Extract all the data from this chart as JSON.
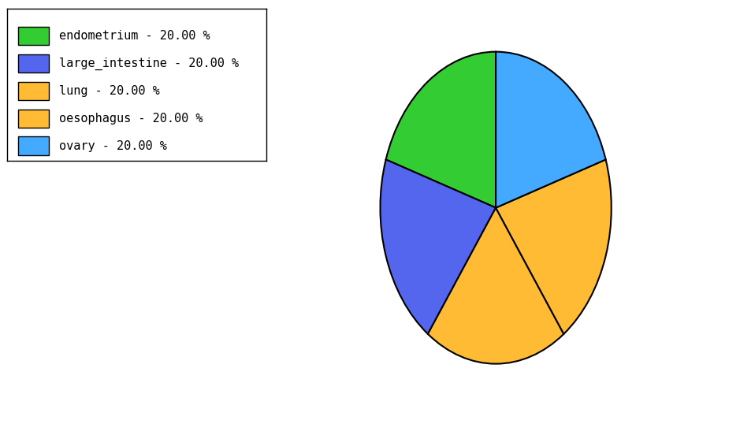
{
  "labels": [
    "endometrium",
    "large_intestine",
    "lung",
    "oesophagus",
    "ovary"
  ],
  "values": [
    20.0,
    20.0,
    20.0,
    20.0,
    20.0
  ],
  "colors": [
    "#33cc33",
    "#5566ee",
    "#ffbb33",
    "#ffbb33",
    "#44aaff"
  ],
  "legend_labels": [
    "endometrium - 20.00 %",
    "large_intestine - 20.00 %",
    "lung - 20.00 %",
    "oesophagus - 20.00 %",
    "ovary - 20.00 %"
  ],
  "background_color": "#ffffff",
  "startangle": 90,
  "aspect_ratio": 1.35
}
